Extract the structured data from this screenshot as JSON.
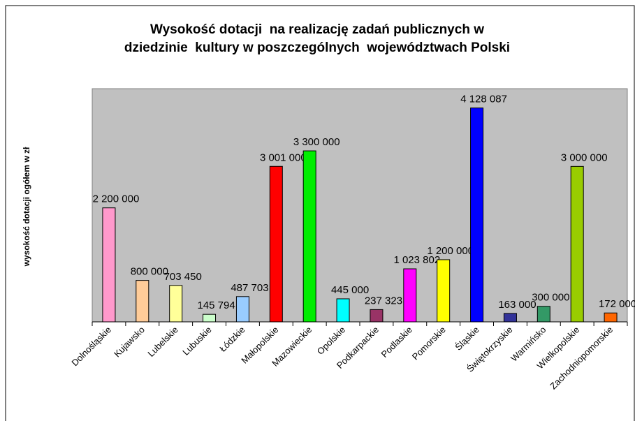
{
  "chart_data": {
    "type": "bar",
    "title": [
      "Wysokość dotacji  na realizację zadań publicznych w",
      "dziedzinie  kultury w poszczególnych  województwach Polski"
    ],
    "y_label": "wysokość dotacji ogółem w zł",
    "categories": [
      "Dolnośląskie",
      "Kujawsko",
      "Lubelskie",
      "Lubuskie",
      "Łódzkie",
      "Małopolskie",
      "Mazowieckie",
      "Opolskie",
      "Podkarpackie",
      "Podlaskie",
      "Pomorskie",
      "Śląskie",
      "Świętokrzyskie",
      "Warmińsko",
      "Wielkopolskie",
      "Zachodniopomorskie"
    ],
    "values": [
      2200000,
      800000,
      703450,
      145794,
      487703,
      3001000,
      3300000,
      445000,
      237323,
      1023802,
      1200000,
      4128087,
      163000,
      300000,
      3000000,
      172000
    ],
    "value_labels": [
      "2 200 000",
      "800 000",
      "703 450",
      "145 794",
      "487 703",
      "3 001 000",
      "3 300 000",
      "445 000",
      "237 323",
      "1 023 802",
      "1 200 000",
      "4 128 087",
      "163 000",
      "300 000",
      "3 000 000",
      "172 000"
    ],
    "colors": [
      "#ff99cc",
      "#ffcc99",
      "#ffff99",
      "#ccffcc",
      "#99ccff",
      "#ff0000",
      "#00ee00",
      "#00ffff",
      "#993366",
      "#ff00ff",
      "#ffff00",
      "#0000ff",
      "#333399",
      "#339966",
      "#99cc00",
      "#ff6600"
    ],
    "ylim": [
      0,
      4500000
    ],
    "plot_background": "#c0c0c0"
  }
}
